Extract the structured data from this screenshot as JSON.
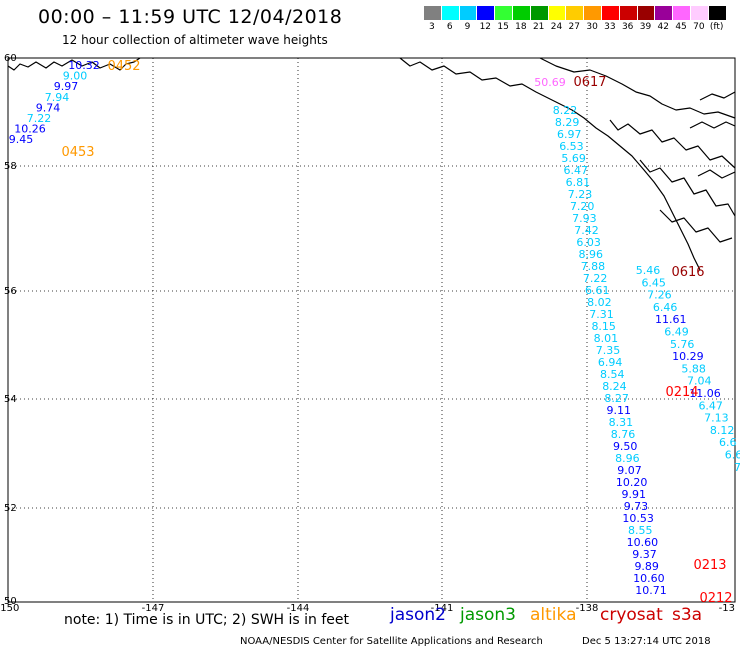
{
  "header": {
    "title": "00:00 – 11:59 UTC 12/04/2018",
    "subtitle": "12 hour collection of altimeter wave heights"
  },
  "colorscale": {
    "colors": [
      "#808080",
      "#00ffff",
      "#00ccff",
      "#0000ff",
      "#33ff33",
      "#00cc00",
      "#009900",
      "#ffff00",
      "#ffcc00",
      "#ff9900",
      "#ff0000",
      "#cc0000",
      "#990000",
      "#990099",
      "#ff66ff",
      "#ffccff",
      "#000000"
    ],
    "labels": [
      "3",
      "6",
      "9",
      "12",
      "15",
      "18",
      "21",
      "24",
      "27",
      "30",
      "33",
      "36",
      "39",
      "42",
      "45",
      "70",
      "(ft)"
    ]
  },
  "axes": {
    "lon": [
      "-150",
      "-147",
      "-144",
      "-141",
      "-138",
      "-13"
    ],
    "lat": [
      "60",
      "58",
      "56",
      "54",
      "52",
      "50"
    ]
  },
  "tracks": [
    {
      "values": [
        "10.32",
        "9.00",
        "9.97",
        "7.94",
        "9.74",
        "7.22",
        "10.26",
        "9.45"
      ],
      "colors": [
        "#0000ff",
        "#00ccff",
        "#0000ff",
        "#00ccff",
        "#0000ff",
        "#00ccff",
        "#0000ff",
        "#0000ff"
      ]
    },
    {
      "values": [
        "8.22",
        "8.29",
        "6.97",
        "6.53",
        "5.69",
        "6.47",
        "6.81",
        "7.23",
        "7.20",
        "7.93",
        "7.42",
        "6.03",
        "8.96",
        "7.88",
        "7.22",
        "6.61",
        "8.02",
        "7.31",
        "8.15",
        "8.01",
        "7.35",
        "6.94",
        "8.54",
        "8.24",
        "8.27",
        "9.11",
        "8.31",
        "8.76",
        "9.50",
        "8.96",
        "9.07",
        "10.20",
        "9.91",
        "9.73",
        "10.53",
        "8.55",
        "10.60",
        "9.37",
        "9.89",
        "10.60",
        "10.71"
      ],
      "colors": [
        "#00ccff",
        "#00ccff",
        "#00ccff",
        "#00ccff",
        "#00ccff",
        "#00ccff",
        "#00ccff",
        "#00ccff",
        "#00ccff",
        "#00ccff",
        "#00ccff",
        "#00ccff",
        "#00ccff",
        "#00ccff",
        "#00ccff",
        "#00ccff",
        "#00ccff",
        "#00ccff",
        "#00ccff",
        "#00ccff",
        "#00ccff",
        "#00ccff",
        "#00ccff",
        "#00ccff",
        "#00ccff",
        "#0000ff",
        "#00ccff",
        "#00ccff",
        "#0000ff",
        "#00ccff",
        "#0000ff",
        "#0000ff",
        "#0000ff",
        "#0000ff",
        "#0000ff",
        "#00ccff",
        "#0000ff",
        "#0000ff",
        "#0000ff",
        "#0000ff",
        "#0000ff"
      ]
    },
    {
      "values": [
        "5.46",
        "6.45",
        "7.26",
        "6.46",
        "11.61",
        "6.49",
        "5.76",
        "10.29",
        "5.88",
        "7.04",
        "11.06",
        "6.47",
        "7.13",
        "8.12",
        "6.6",
        "6.6",
        "7."
      ],
      "colors": [
        "#00ccff",
        "#00ccff",
        "#00ccff",
        "#00ccff",
        "#0000ff",
        "#00ccff",
        "#00ccff",
        "#0000ff",
        "#00ccff",
        "#00ccff",
        "#0000ff",
        "#00ccff",
        "#00ccff",
        "#00ccff",
        "#00ccff",
        "#00ccff",
        "#00ccff"
      ]
    },
    {
      "values": [
        "50.69"
      ],
      "colors": [
        "#ff66ff"
      ]
    }
  ],
  "time_labels": [
    {
      "text": "0452",
      "color": "#ff9900"
    },
    {
      "text": "0453",
      "color": "#ff9900"
    },
    {
      "text": "0617",
      "color": "#990000"
    },
    {
      "text": "0616",
      "color": "#990000"
    },
    {
      "text": "0214",
      "color": "#ff0000"
    },
    {
      "text": "0213",
      "color": "#ff0000"
    },
    {
      "text": "0212",
      "color": "#ff0000"
    }
  ],
  "footer": {
    "note": "note: 1) Time is in UTC; 2) SWH is in feet",
    "credit": "NOAA/NESDIS Center for Satellite Applications and Research",
    "timestamp": "Dec  5 13:27:14 UTC 2018"
  },
  "legend": [
    {
      "name": "jason2",
      "color": "#0000cc"
    },
    {
      "name": "jason3",
      "color": "#009900"
    },
    {
      "name": "altika",
      "color": "#ff9900"
    },
    {
      "name": "cryosat",
      "color": "#cc0000"
    },
    {
      "name": "s3a",
      "color": "#cc0000"
    }
  ]
}
